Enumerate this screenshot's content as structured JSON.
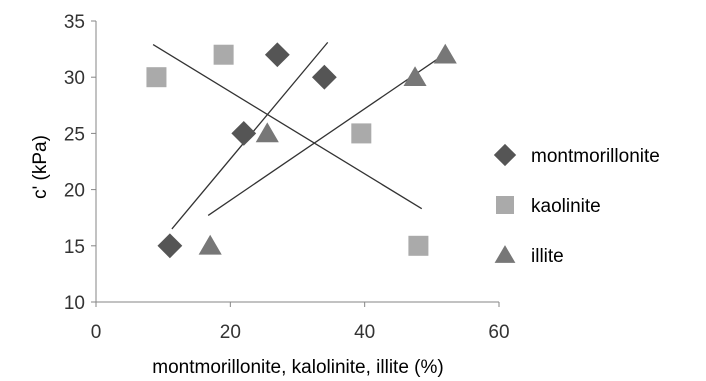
{
  "chart_data": {
    "type": "scatter",
    "xlabel": "montmorillonite, kalolinite, illite (%)",
    "ylabel": "c' (kPa)",
    "xlim": [
      0,
      60
    ],
    "ylim": [
      10,
      35
    ],
    "xticks": [
      "0",
      "20",
      "40",
      "60"
    ],
    "yticks": [
      "10",
      "15",
      "20",
      "25",
      "30",
      "35"
    ],
    "grid": false,
    "legend": "right",
    "series": [
      {
        "name": "montmorillonite",
        "marker": "diamond",
        "color": "#555555",
        "points": [
          [
            11,
            15
          ],
          [
            22,
            25
          ],
          [
            27,
            32
          ],
          [
            34,
            30
          ]
        ],
        "trendline": [
          [
            11.3,
            16.5
          ],
          [
            34.5,
            33.1
          ]
        ]
      },
      {
        "name": "kaolinite",
        "marker": "square",
        "color": "#aaaaaa",
        "points": [
          [
            9,
            30
          ],
          [
            19,
            32
          ],
          [
            39.5,
            25
          ],
          [
            48,
            15
          ]
        ],
        "trendline": [
          [
            8.5,
            32.9
          ],
          [
            48.5,
            18.3
          ]
        ]
      },
      {
        "name": "illite",
        "marker": "triangle",
        "color": "#777777",
        "points": [
          [
            17,
            15
          ],
          [
            25.5,
            25
          ],
          [
            47.5,
            30
          ],
          [
            52,
            32
          ]
        ],
        "trendline": [
          [
            16.7,
            17.7
          ],
          [
            51.8,
            32.0
          ]
        ]
      }
    ]
  }
}
